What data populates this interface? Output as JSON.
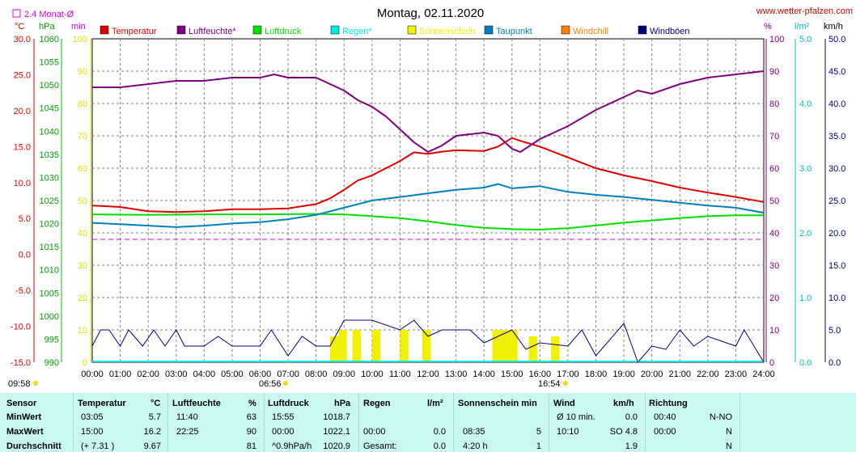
{
  "header": {
    "title": "Montag, 02.11.2020",
    "site": "www.wetter-pfalzen.com",
    "monat_label": "2.4 Monat-Ø",
    "first_time": "09:58",
    "sunrise": "06:56",
    "sunset": "16:54"
  },
  "units": {
    "temp": "°C",
    "press": "hPa",
    "min": "min",
    "pct": "%",
    "rain": "l/m²",
    "wind": "km/h"
  },
  "legend": [
    {
      "label": "Temperatur",
      "color": "#e00000"
    },
    {
      "label": "Luftfeuchte*",
      "color": "#800080"
    },
    {
      "label": "Luftdruck",
      "color": "#00e000"
    },
    {
      "label": "Regen*",
      "color": "#00e8e8"
    },
    {
      "label": "Sonnenschein",
      "color": "#f0f000"
    },
    {
      "label": "Taupunkt",
      "color": "#0080c0"
    },
    {
      "label": "Windchill",
      "color": "#ff8000"
    },
    {
      "label": "Windböen",
      "color": "#000080"
    }
  ],
  "chart_data": {
    "type": "line",
    "x_unit": "hour",
    "x_range": [
      0,
      24
    ],
    "x_ticks": [
      "00:00",
      "01:00",
      "02:00",
      "03:00",
      "04:00",
      "05:00",
      "06:00",
      "07:00",
      "08:00",
      "09:00",
      "10:00",
      "11:00",
      "12:00",
      "13:00",
      "14:00",
      "15:00",
      "16:00",
      "17:00",
      "18:00",
      "19:00",
      "20:00",
      "21:00",
      "22:00",
      "23:00",
      "24:00"
    ],
    "axes": {
      "temp": {
        "range": [
          -15,
          30
        ],
        "ticks": [
          "30.0",
          "25.0",
          "20.0",
          "15.0",
          "10.0",
          "5.0",
          "0.0",
          "-5.0",
          "-10.0",
          "-15.0"
        ],
        "color": "#e00000"
      },
      "pressure": {
        "range": [
          990,
          1060
        ],
        "ticks": [
          "1060",
          "1055",
          "1050",
          "1045",
          "1040",
          "1035",
          "1030",
          "1025",
          "1020",
          "1015",
          "1010",
          "1005",
          "1000",
          "995",
          "990"
        ],
        "color": "#00a000"
      },
      "minutes": {
        "range": [
          0,
          100
        ],
        "ticks": [
          "100",
          "90",
          "80",
          "70",
          "60",
          "50",
          "40",
          "30",
          "20",
          "10",
          "0"
        ],
        "color": "#e0e000"
      },
      "humidity": {
        "range": [
          0,
          100
        ],
        "ticks": [
          "100",
          "90",
          "80",
          "70",
          "60",
          "50",
          "40",
          "30",
          "20",
          "10",
          "0"
        ],
        "color": "#800080"
      },
      "rain": {
        "range": [
          0,
          5
        ],
        "ticks": [
          "5.0",
          "4.0",
          "3.0",
          "2.0",
          "1.0",
          "0.0"
        ],
        "color": "#00c0c0"
      },
      "wind": {
        "range": [
          0,
          50
        ],
        "ticks": [
          "50.0",
          "45.0",
          "40.0",
          "35.0",
          "30.0",
          "25.0",
          "20.0",
          "15.0",
          "10.0",
          "5.0",
          "0.0"
        ],
        "color": "#000080"
      }
    },
    "monat_avg_rain": 1.9,
    "series": [
      {
        "name": "Temperatur",
        "axis": "temp",
        "color": "#e00000",
        "points": [
          [
            0,
            6.8
          ],
          [
            1,
            6.6
          ],
          [
            2,
            6.0
          ],
          [
            3,
            5.9
          ],
          [
            4,
            6.0
          ],
          [
            5,
            6.3
          ],
          [
            6,
            6.3
          ],
          [
            7,
            6.4
          ],
          [
            8,
            7.0
          ],
          [
            8.5,
            7.8
          ],
          [
            9,
            9.0
          ],
          [
            9.5,
            10.3
          ],
          [
            10,
            11.0
          ],
          [
            10.5,
            12.0
          ],
          [
            11,
            13.0
          ],
          [
            11.5,
            14.2
          ],
          [
            12,
            14.0
          ],
          [
            12.5,
            14.3
          ],
          [
            13,
            14.5
          ],
          [
            14,
            14.4
          ],
          [
            14.5,
            15.0
          ],
          [
            15,
            16.2
          ],
          [
            15.3,
            15.8
          ],
          [
            16,
            15.0
          ],
          [
            17,
            13.5
          ],
          [
            18,
            12.0
          ],
          [
            19,
            11.0
          ],
          [
            20,
            10.2
          ],
          [
            21,
            9.3
          ],
          [
            22,
            8.6
          ],
          [
            23,
            8.0
          ],
          [
            24,
            7.3
          ]
        ]
      },
      {
        "name": "Luftfeuchte*",
        "axis": "humidity",
        "color": "#800080",
        "points": [
          [
            0,
            85
          ],
          [
            1,
            85
          ],
          [
            2,
            86
          ],
          [
            3,
            87
          ],
          [
            4,
            87
          ],
          [
            5,
            88
          ],
          [
            6,
            88
          ],
          [
            6.5,
            89
          ],
          [
            7,
            88
          ],
          [
            8,
            88
          ],
          [
            8.5,
            86
          ],
          [
            9,
            84
          ],
          [
            9.5,
            81
          ],
          [
            10,
            79
          ],
          [
            10.5,
            76
          ],
          [
            11,
            72
          ],
          [
            11.5,
            68
          ],
          [
            12,
            65
          ],
          [
            12.5,
            67
          ],
          [
            13,
            70
          ],
          [
            14,
            71
          ],
          [
            14.5,
            70
          ],
          [
            15,
            66
          ],
          [
            15.3,
            65
          ],
          [
            16,
            69
          ],
          [
            17,
            73
          ],
          [
            18,
            78
          ],
          [
            19,
            82
          ],
          [
            19.5,
            84
          ],
          [
            20,
            83
          ],
          [
            21,
            86
          ],
          [
            22,
            88
          ],
          [
            23,
            89
          ],
          [
            24,
            90
          ]
        ]
      },
      {
        "name": "Luftdruck",
        "axis": "pressure",
        "color": "#00e000",
        "points": [
          [
            0,
            1022.0
          ],
          [
            2,
            1021.9
          ],
          [
            4,
            1022.0
          ],
          [
            6,
            1022.0
          ],
          [
            8,
            1022.1
          ],
          [
            9,
            1022.0
          ],
          [
            10,
            1021.6
          ],
          [
            11,
            1021.2
          ],
          [
            12,
            1020.5
          ],
          [
            13,
            1019.7
          ],
          [
            14,
            1019.1
          ],
          [
            15,
            1018.8
          ],
          [
            16,
            1018.7
          ],
          [
            17,
            1019.0
          ],
          [
            18,
            1019.6
          ],
          [
            19,
            1020.2
          ],
          [
            20,
            1020.7
          ],
          [
            21,
            1021.2
          ],
          [
            22,
            1021.6
          ],
          [
            23,
            1021.8
          ],
          [
            24,
            1021.8
          ]
        ]
      },
      {
        "name": "Taupunkt",
        "axis": "temp",
        "color": "#0080c0",
        "points": [
          [
            0,
            4.4
          ],
          [
            1,
            4.2
          ],
          [
            2,
            4.0
          ],
          [
            3,
            3.8
          ],
          [
            4,
            4.0
          ],
          [
            5,
            4.3
          ],
          [
            6,
            4.5
          ],
          [
            7,
            4.9
          ],
          [
            8,
            5.5
          ],
          [
            9,
            6.5
          ],
          [
            10,
            7.5
          ],
          [
            11,
            8.0
          ],
          [
            12,
            8.5
          ],
          [
            13,
            9.0
          ],
          [
            14,
            9.3
          ],
          [
            14.5,
            9.8
          ],
          [
            15,
            9.2
          ],
          [
            16,
            9.5
          ],
          [
            17,
            8.7
          ],
          [
            18,
            8.3
          ],
          [
            19,
            8.0
          ],
          [
            20,
            7.6
          ],
          [
            21,
            7.2
          ],
          [
            22,
            6.8
          ],
          [
            23,
            6.5
          ],
          [
            24,
            5.8
          ]
        ]
      },
      {
        "name": "Windböen",
        "axis": "wind",
        "color": "#000080",
        "points": [
          [
            0,
            2.5
          ],
          [
            0.3,
            5
          ],
          [
            0.6,
            5
          ],
          [
            1,
            2.5
          ],
          [
            1.3,
            5
          ],
          [
            1.8,
            2.5
          ],
          [
            2.2,
            5
          ],
          [
            2.6,
            2.5
          ],
          [
            3,
            5
          ],
          [
            3.3,
            2.5
          ],
          [
            4,
            2.5
          ],
          [
            4.5,
            4
          ],
          [
            5,
            2.5
          ],
          [
            6,
            2.5
          ],
          [
            6.4,
            5
          ],
          [
            7,
            1
          ],
          [
            7.5,
            4
          ],
          [
            8,
            2.5
          ],
          [
            8.5,
            2.5
          ],
          [
            9,
            6.5
          ],
          [
            10,
            6.5
          ],
          [
            11,
            5
          ],
          [
            11.5,
            6.5
          ],
          [
            12,
            4
          ],
          [
            12.5,
            5
          ],
          [
            13,
            5
          ],
          [
            13.5,
            5
          ],
          [
            14,
            3
          ],
          [
            15,
            5
          ],
          [
            15.5,
            2
          ],
          [
            16,
            3
          ],
          [
            17,
            2.5
          ],
          [
            17.5,
            5
          ],
          [
            18,
            1
          ],
          [
            19,
            6
          ],
          [
            19.5,
            0
          ],
          [
            20,
            2.5
          ],
          [
            20.5,
            2
          ],
          [
            21,
            5
          ],
          [
            21.5,
            2.5
          ],
          [
            22,
            4
          ],
          [
            23,
            2.5
          ],
          [
            23.3,
            5
          ],
          [
            24,
            0
          ]
        ]
      }
    ],
    "sunshine_bars": [
      [
        8.5,
        4
      ],
      [
        8.8,
        5
      ],
      [
        9.3,
        5
      ],
      [
        10,
        5
      ],
      [
        11,
        5
      ],
      [
        11.8,
        5
      ],
      [
        14.3,
        5
      ],
      [
        14.6,
        5
      ],
      [
        14.9,
        5
      ],
      [
        15.6,
        4
      ],
      [
        16.4,
        4
      ]
    ]
  },
  "stats": {
    "headers": {
      "sensor": "Sensor",
      "temp": "Temperatur",
      "temp_u": "°C",
      "hum": "Luftfeuchte",
      "hum_u": "%",
      "press": "Luftdruck",
      "press_u": "hPa",
      "rain": "Regen",
      "rain_u": "l/m²",
      "sun": "Sonnenschein min",
      "wind": "Wind",
      "wind_u": "km/h",
      "dir": "Richtung"
    },
    "rows": [
      {
        "label": "MinWert",
        "temp_t": "03:05",
        "temp_v": "5.7",
        "hum_t": "11:40",
        "hum_v": "63",
        "press_t": "15:55",
        "press_v": "1018.7",
        "rain_t": "",
        "rain_v": "",
        "sun_t": "",
        "sun_v": "",
        "wind_t": "Ø 10 min.",
        "wind_v": "0.0",
        "dir_t": "00:40",
        "dir_v": "N-NO"
      },
      {
        "label": "MaxWert",
        "temp_t": "15:00",
        "temp_v": "16.2",
        "hum_t": "22:25",
        "hum_v": "90",
        "press_t": "00:00",
        "press_v": "1022.1",
        "rain_t": "00:00",
        "rain_v": "0.0",
        "sun_t": "08:35",
        "sun_v": "5",
        "wind_t": "10:10",
        "wind_v": "SO 4.8",
        "dir_t": "00:00",
        "dir_v": "N"
      },
      {
        "label": "Durchschnitt",
        "temp_t": "(+ 7.31 )",
        "temp_v": "9.67",
        "hum_t": "",
        "hum_v": "81",
        "press_t": "^0.9hPa/h",
        "press_v": "1020.9",
        "rain_t": "Gesamt:",
        "rain_v": "0.0",
        "sun_t": "4:20 h",
        "sun_v": "1",
        "wind_t": "",
        "wind_v": "1.9",
        "dir_t": "",
        "dir_v": "N"
      }
    ]
  }
}
